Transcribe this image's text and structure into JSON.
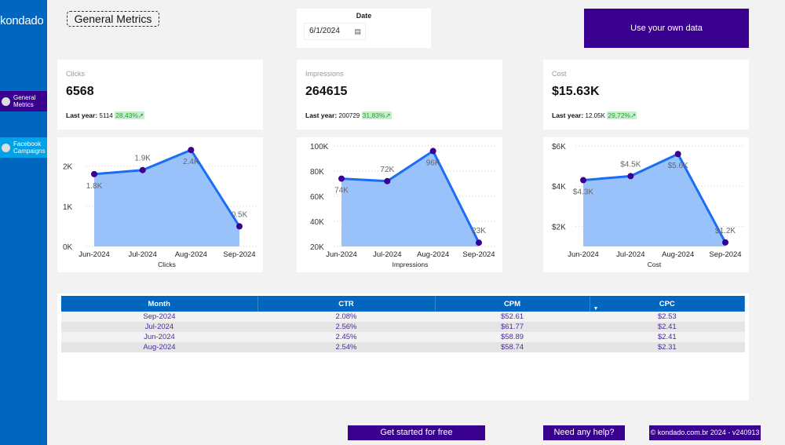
{
  "sidebar": {
    "logo": "kondado",
    "items": [
      {
        "label": "General Metrics",
        "active": true,
        "color": "#3a0090"
      },
      {
        "label": "Facebook Campaigns",
        "active": false,
        "color": "#00a2e8"
      }
    ]
  },
  "header": {
    "title": "General Metrics",
    "date_label": "Date",
    "date_value": "6/1/2024",
    "date_icon": "calendar-icon",
    "own_data_button": "Use your own data"
  },
  "kpis": [
    {
      "name": "Clicks",
      "value": "6568",
      "last_year_label": "Last year:",
      "last_year": "5114",
      "change": "28,43%"
    },
    {
      "name": "Impressions",
      "value": "264615",
      "last_year_label": "Last year:",
      "last_year": "200729",
      "change": "31,83%"
    },
    {
      "name": "Cost",
      "value": "$15.63K",
      "last_year_label": "Last year:",
      "last_year": "12.05K",
      "change": "29,72%"
    }
  ],
  "chart_data": [
    {
      "type": "area",
      "xlabel": "Clicks",
      "categories": [
        "Jun-2024",
        "Jul-2024",
        "Aug-2024",
        "Sep-2024"
      ],
      "values": [
        1800,
        1900,
        2400,
        500
      ],
      "data_labels": [
        "1.8K",
        "1.9K",
        "2.4K",
        "0.5K"
      ],
      "yticks": [
        0,
        1000,
        2000
      ],
      "ytick_labels": [
        "0K",
        "1K",
        "2K"
      ],
      "ylim": [
        0,
        2500
      ],
      "grid": true
    },
    {
      "type": "area",
      "xlabel": "Impressions",
      "categories": [
        "Jun-2024",
        "Jul-2024",
        "Aug-2024",
        "Sep-2024"
      ],
      "values": [
        74000,
        72000,
        96000,
        23000
      ],
      "data_labels": [
        "74K",
        "72K",
        "96K",
        "23K"
      ],
      "yticks": [
        20000,
        40000,
        60000,
        80000,
        100000
      ],
      "ytick_labels": [
        "20K",
        "40K",
        "60K",
        "80K",
        "100K"
      ],
      "ylim": [
        20000,
        100000
      ],
      "grid": true
    },
    {
      "type": "area",
      "xlabel": "Cost",
      "categories": [
        "Jun-2024",
        "Jul-2024",
        "Aug-2024",
        "Sep-2024"
      ],
      "values": [
        4300,
        4500,
        5600,
        1200
      ],
      "data_labels": [
        "$4.3K",
        "$4.5K",
        "$5.6K",
        "$1.2K"
      ],
      "yticks": [
        2000,
        4000,
        6000
      ],
      "ytick_labels": [
        "$2K",
        "$4K",
        "$6K"
      ],
      "ylim": [
        1000,
        6000
      ],
      "grid": true
    }
  ],
  "colors": {
    "line": "#1a6ef5",
    "fill": "#99c2fb",
    "point": "#3a0090"
  },
  "table": {
    "headers": [
      "Month",
      "CTR",
      "CPM",
      "CPC"
    ],
    "rows": [
      [
        "Sep-2024",
        "2.08%",
        "$52.61",
        "$2.53"
      ],
      [
        "Jul-2024",
        "2.56%",
        "$61.77",
        "$2.41"
      ],
      [
        "Jun-2024",
        "2.45%",
        "$58.89",
        "$2.41"
      ],
      [
        "Aug-2024",
        "2.54%",
        "$58.74",
        "$2.31"
      ]
    ]
  },
  "footer": {
    "get_started": "Get started for free",
    "help": "Need any help?",
    "copyright": "© kondado.com.br 2024 - v240913"
  }
}
